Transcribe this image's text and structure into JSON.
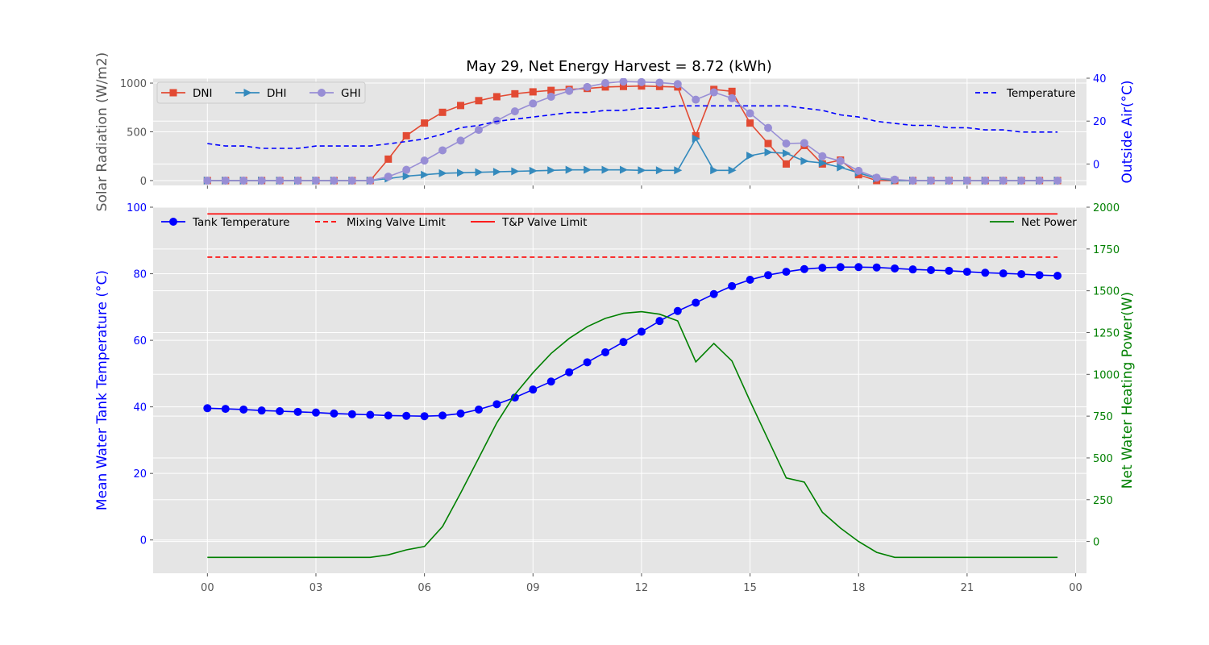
{
  "title": "May 29,  Net Energy Harvest = 8.72 (kWh)",
  "x_tick_labels": [
    "00",
    "03",
    "06",
    "09",
    "12",
    "15",
    "18",
    "21",
    "00"
  ],
  "colors": {
    "axes_bg": "#e5e5e5",
    "grid": "#ffffff",
    "dni": "#e24a33",
    "dhi": "#348abd",
    "ghi": "#988ed5",
    "temperature": "#0000ff",
    "tank": "#0000ff",
    "mixing_limit": "#ff0000",
    "tp_limit": "#ff0000",
    "net_power": "#008000",
    "left_label_gray": "#555555"
  },
  "chart_data": [
    {
      "type": "line",
      "title": "May 29,  Net Energy Harvest = 8.72 (kWh)",
      "xlabel": "",
      "ylabel": "Solar Radiation (W/m2)",
      "y2label": "Outside Air(°C)",
      "xlim": [
        -1.5,
        24.3
      ],
      "ylim": [
        -50,
        1050
      ],
      "y2lim": [
        -10,
        40
      ],
      "y_ticks": [
        0,
        500,
        1000
      ],
      "y2_ticks": [
        0,
        20,
        40
      ],
      "x_hours": [
        0,
        0.5,
        1,
        1.5,
        2,
        2.5,
        3,
        3.5,
        4,
        4.5,
        5,
        5.5,
        6,
        6.5,
        7,
        7.5,
        8,
        8.5,
        9,
        9.5,
        10,
        10.5,
        11,
        11.5,
        12,
        12.5,
        13,
        13.5,
        14,
        14.5,
        15,
        15.5,
        16,
        16.5,
        17,
        17.5,
        18,
        18.5,
        19,
        19.5,
        20,
        20.5,
        21,
        21.5,
        22,
        22.5,
        23,
        23.5
      ],
      "grid": true,
      "legend_left": "upper-left",
      "legend_right": "upper-right",
      "series": [
        {
          "name": "DNI",
          "axis": "left",
          "marker": "square",
          "values": [
            0,
            0,
            0,
            0,
            0,
            0,
            0,
            0,
            0,
            0,
            220,
            460,
            590,
            700,
            770,
            820,
            860,
            890,
            910,
            925,
            935,
            945,
            960,
            965,
            970,
            965,
            960,
            460,
            935,
            915,
            590,
            380,
            170,
            360,
            170,
            210,
            60,
            0,
            0,
            0,
            0,
            0,
            0,
            0,
            0,
            0,
            0,
            0
          ]
        },
        {
          "name": "DHI",
          "axis": "left",
          "marker": "triangle-right",
          "values": [
            0,
            0,
            0,
            0,
            0,
            0,
            0,
            0,
            0,
            0,
            20,
            45,
            60,
            75,
            80,
            85,
            90,
            95,
            100,
            105,
            110,
            110,
            110,
            110,
            105,
            105,
            105,
            430,
            105,
            105,
            255,
            290,
            280,
            200,
            180,
            135,
            80,
            20,
            0,
            0,
            0,
            0,
            0,
            0,
            0,
            0,
            0,
            0
          ]
        },
        {
          "name": "GHI",
          "axis": "left",
          "marker": "circle",
          "values": [
            0,
            0,
            0,
            0,
            0,
            0,
            0,
            0,
            0,
            0,
            40,
            110,
            205,
            310,
            410,
            520,
            615,
            710,
            790,
            860,
            920,
            960,
            1000,
            1015,
            1010,
            1005,
            990,
            830,
            905,
            845,
            690,
            540,
            380,
            385,
            250,
            200,
            100,
            30,
            10,
            0,
            0,
            0,
            0,
            0,
            0,
            0,
            0,
            0
          ]
        },
        {
          "name": "Temperature",
          "axis": "right",
          "style": "dashed",
          "values": [
            9.5,
            8.4,
            8.4,
            7.3,
            7.3,
            7.3,
            8.4,
            8.4,
            8.4,
            8.4,
            9.4,
            10.5,
            11.7,
            13.9,
            16.9,
            18.0,
            19.9,
            20.9,
            21.9,
            22.9,
            24.0,
            24.0,
            25.0,
            25.0,
            26.0,
            26.0,
            27.1,
            27.1,
            27.1,
            27.1,
            27.1,
            27.1,
            27.1,
            26.0,
            25.0,
            22.9,
            21.9,
            19.9,
            18.9,
            18.0,
            18.0,
            16.9,
            16.9,
            15.9,
            15.9,
            14.9,
            14.9,
            14.9
          ]
        }
      ]
    },
    {
      "type": "line",
      "xlabel": "",
      "ylabel": "Mean Water Tank Temperature (°C)",
      "y2label": "Net Water Heating Power(W)",
      "xlim": [
        -1.5,
        24.3
      ],
      "ylim": [
        -10,
        100
      ],
      "y2lim": [
        -190,
        2000
      ],
      "y_ticks": [
        0,
        20,
        40,
        60,
        80,
        100
      ],
      "y2_ticks": [
        0,
        250,
        500,
        750,
        1000,
        1250,
        1500,
        1750,
        2000
      ],
      "grid": true,
      "legend_left": "upper-left",
      "legend_right": "upper-right",
      "series": [
        {
          "name": "Tank Temperature",
          "axis": "left",
          "marker": "circle",
          "x_hours": [
            0,
            0.5,
            1,
            1.5,
            2,
            2.5,
            3,
            3.5,
            4,
            4.5,
            5,
            5.5,
            6,
            6.5,
            7,
            7.5,
            8,
            8.5,
            9,
            9.5,
            10,
            10.5,
            11,
            11.5,
            12,
            12.5,
            13,
            13.5,
            14,
            14.5,
            15,
            15.5,
            16,
            16.5,
            17,
            17.5,
            18,
            18.5,
            19,
            19.5,
            20,
            20.5,
            21,
            21.5,
            22,
            22.5,
            23,
            23.5
          ],
          "values": [
            39.6,
            39.4,
            39.2,
            38.9,
            38.7,
            38.5,
            38.3,
            38.0,
            37.8,
            37.6,
            37.4,
            37.3,
            37.2,
            37.4,
            38.0,
            39.2,
            40.8,
            42.8,
            45.2,
            47.6,
            50.4,
            53.4,
            56.4,
            59.5,
            62.6,
            65.8,
            68.8,
            71.3,
            73.9,
            76.3,
            78.2,
            79.6,
            80.6,
            81.4,
            81.8,
            82.0,
            82.0,
            81.9,
            81.6,
            81.3,
            81.1,
            80.9,
            80.6,
            80.3,
            80.1,
            79.9,
            79.6,
            79.4
          ]
        },
        {
          "name": "Mixing Valve Limit",
          "axis": "left",
          "style": "dashed",
          "x_hours": [
            0,
            23.5
          ],
          "values": [
            85,
            85
          ]
        },
        {
          "name": "T&P Valve Limit",
          "axis": "left",
          "style": "solid",
          "x_hours": [
            0,
            23.5
          ],
          "values": [
            98,
            98
          ]
        },
        {
          "name": "Net Power",
          "axis": "right",
          "style": "solid",
          "x_hours": [
            0,
            0.5,
            1,
            1.5,
            2,
            2.5,
            3,
            3.5,
            4,
            4.5,
            5,
            5.5,
            6,
            6.5,
            7,
            7.5,
            8,
            8.5,
            9,
            9.5,
            10,
            10.5,
            11,
            11.5,
            12,
            12.5,
            13,
            13.5,
            14,
            14.5,
            15,
            15.5,
            16,
            16.5,
            17,
            17.5,
            18,
            18.5,
            19,
            19.5,
            20,
            20.5,
            21,
            21.5,
            22,
            22.5,
            23,
            23.5
          ],
          "values": [
            -95,
            -95,
            -95,
            -95,
            -95,
            -95,
            -95,
            -95,
            -95,
            -95,
            -80,
            -50,
            -30,
            90,
            290,
            500,
            710,
            880,
            1010,
            1125,
            1215,
            1285,
            1335,
            1365,
            1375,
            1360,
            1320,
            1075,
            1185,
            1080,
            840,
            610,
            380,
            355,
            175,
            80,
            0,
            -65,
            -95,
            -95,
            -95,
            -95,
            -95,
            -95,
            -95,
            -95,
            -95,
            -95
          ]
        }
      ]
    }
  ]
}
